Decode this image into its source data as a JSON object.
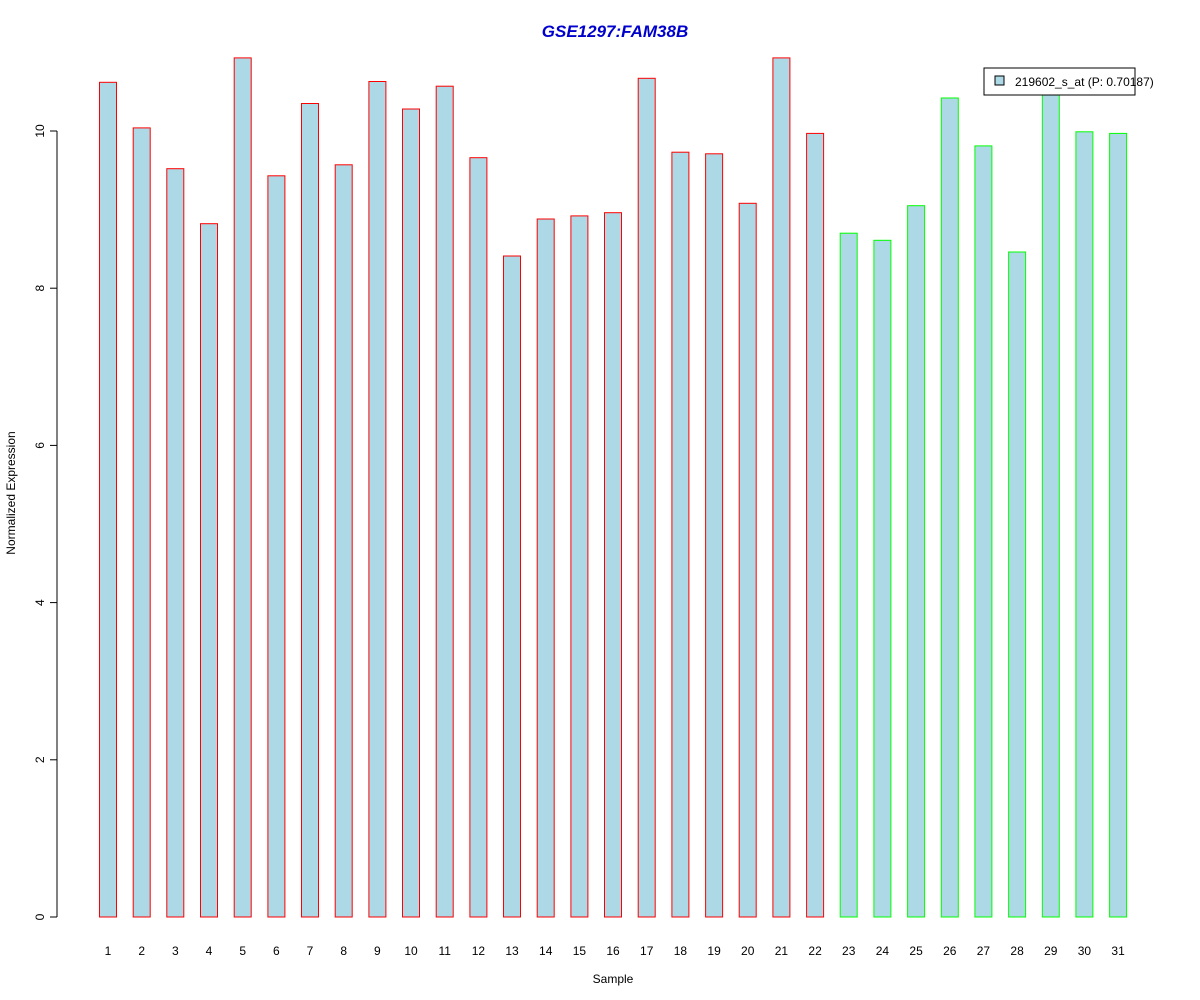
{
  "chart_data": {
    "type": "bar",
    "title": "GSE1297:FAM38B",
    "xlabel": "Sample",
    "ylabel": "Normalized Expression",
    "ylim": [
      0,
      11
    ],
    "yticks": [
      0,
      2,
      4,
      6,
      8,
      10
    ],
    "grid": false,
    "legend_position": "top-right",
    "colors": {
      "title": "#0000cc",
      "bar_fill": "#add8e6",
      "group1_border": "#ff0000",
      "group2_border": "#00ff00",
      "axis": "#000000"
    },
    "categories": [
      "1",
      "2",
      "3",
      "4",
      "5",
      "6",
      "7",
      "8",
      "9",
      "10",
      "11",
      "12",
      "13",
      "14",
      "15",
      "16",
      "17",
      "18",
      "19",
      "20",
      "21",
      "22",
      "23",
      "24",
      "25",
      "26",
      "27",
      "28",
      "29",
      "30",
      "31"
    ],
    "series": [
      {
        "name": "219602_s_at (P: 0.70187)",
        "values": [
          10.62,
          10.04,
          9.52,
          8.82,
          10.93,
          9.43,
          10.35,
          9.57,
          10.63,
          10.28,
          10.57,
          9.66,
          8.41,
          8.88,
          8.92,
          8.96,
          10.67,
          9.73,
          9.71,
          9.08,
          10.93,
          9.97,
          8.7,
          8.61,
          9.05,
          10.42,
          9.81,
          8.46,
          10.55,
          9.99,
          9.97
        ],
        "groups": [
          1,
          1,
          1,
          1,
          1,
          1,
          1,
          1,
          1,
          1,
          1,
          1,
          1,
          1,
          1,
          1,
          1,
          1,
          1,
          1,
          1,
          1,
          2,
          2,
          2,
          2,
          2,
          2,
          2,
          2,
          2
        ]
      }
    ]
  }
}
